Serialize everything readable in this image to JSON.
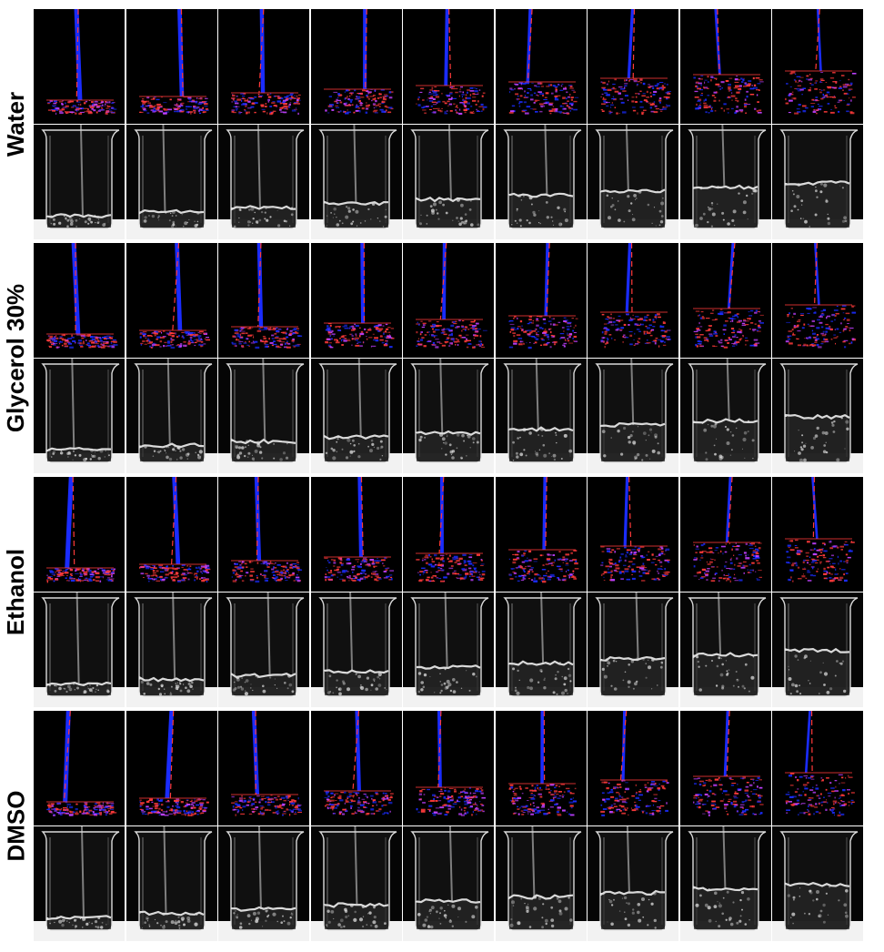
{
  "figure": {
    "rows": [
      {
        "label": "Water",
        "frames": 9
      },
      {
        "label": "Glycerol 30%",
        "frames": 9
      },
      {
        "label": "Ethanol",
        "frames": 9
      },
      {
        "label": "DMSO",
        "frames": 9
      }
    ],
    "panels_per_row": [
      "flow-visualization",
      "photograph"
    ],
    "colors": {
      "flow_background": "#000000",
      "flow_blue": "#1a2cff",
      "flow_red": "#ff3a3a",
      "flow_magenta": "#c040ff",
      "photo_background": "#050505",
      "photo_glass": "#e6e6e6",
      "photo_table": "#f2f2f2"
    }
  }
}
